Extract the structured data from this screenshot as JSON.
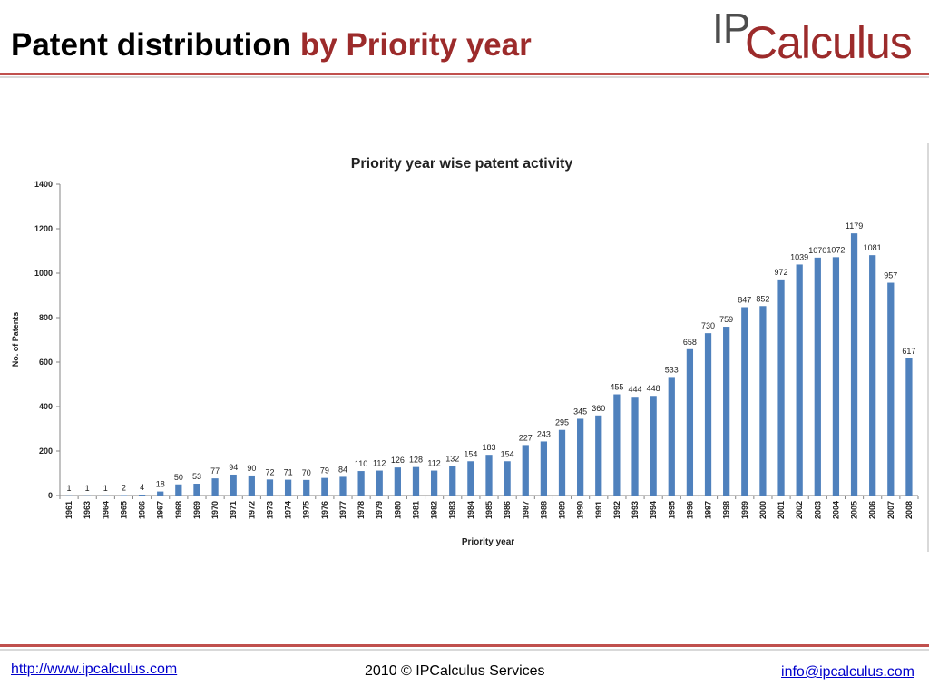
{
  "header": {
    "title_main": "Patent distribution",
    "title_accent": "by Priority year",
    "logo_ip": "IP",
    "logo_calc": "Calculus"
  },
  "footer": {
    "website": "http://www.ipcalculus.com",
    "copyright": "2010 © IPCalculus Services",
    "email": "info@ipcalculus.com"
  },
  "colors": {
    "bar": "#4f81bd",
    "title_accent": "#9c2b2b",
    "rule": "#c0504d"
  },
  "chart_data": {
    "type": "bar",
    "title": "Priority year wise patent activity",
    "xlabel": "Priority year",
    "ylabel": "No. of Patents",
    "ylim": [
      0,
      1400
    ],
    "yticks": [
      0,
      200,
      400,
      600,
      800,
      1000,
      1200,
      1400
    ],
    "grid": false,
    "legend": "none",
    "categories": [
      "1961",
      "1963",
      "1964",
      "1965",
      "1966",
      "1967",
      "1968",
      "1969",
      "1970",
      "1971",
      "1972",
      "1973",
      "1974",
      "1975",
      "1976",
      "1977",
      "1978",
      "1979",
      "1980",
      "1981",
      "1982",
      "1983",
      "1984",
      "1985",
      "1986",
      "1987",
      "1988",
      "1989",
      "1990",
      "1991",
      "1992",
      "1993",
      "1994",
      "1995",
      "1996",
      "1997",
      "1998",
      "1999",
      "2000",
      "2001",
      "2002",
      "2003",
      "2004",
      "2005",
      "2006",
      "2007",
      "2008"
    ],
    "values": [
      1,
      1,
      1,
      2,
      4,
      18,
      50,
      53,
      77,
      94,
      90,
      72,
      71,
      70,
      79,
      84,
      110,
      112,
      126,
      128,
      112,
      132,
      154,
      183,
      154,
      227,
      243,
      295,
      345,
      360,
      455,
      444,
      448,
      533,
      658,
      730,
      759,
      847,
      852,
      972,
      1039,
      1070,
      1072,
      1179,
      1081,
      957,
      617
    ]
  }
}
